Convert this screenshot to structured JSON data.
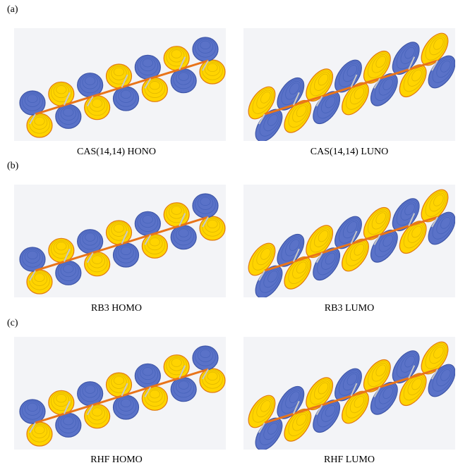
{
  "figure": {
    "colors": {
      "positive_lobe": "#ffd400",
      "negative_lobe": "#5a72c8",
      "bond": "#e8741a",
      "background": "#f3f4f7"
    },
    "panels": [
      {
        "label": "(a)",
        "left_caption": "CAS(14,14) HONO",
        "right_caption": "CAS(14,14) LUNO"
      },
      {
        "label": "(b)",
        "left_caption": "RB3 HOMO",
        "right_caption": "RB3 LUMO"
      },
      {
        "label": "(c)",
        "left_caption": "RHF HOMO",
        "right_caption": "RHF LUMO"
      }
    ]
  }
}
